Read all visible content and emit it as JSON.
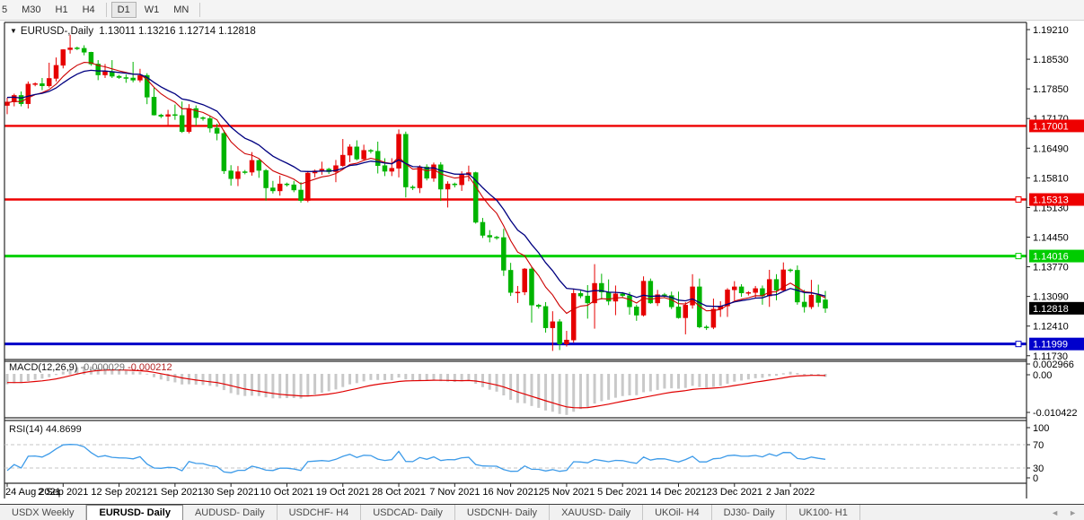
{
  "toolbar": {
    "timeframes": [
      "5",
      "M30",
      "H1",
      "H4",
      "D1",
      "W1",
      "MN"
    ],
    "active": "D1"
  },
  "title": {
    "dropdown_icon": "▼",
    "symbol": "EURUSD-,Daily",
    "open": "1.13011",
    "high": "1.13216",
    "low": "1.12714",
    "close": "1.12818"
  },
  "price_axis": {
    "ticks": [
      "1.19210",
      "1.18530",
      "1.17850",
      "1.17170",
      "1.16490",
      "1.15810",
      "1.15130",
      "1.14450",
      "1.13770",
      "1.13090",
      "1.12410",
      "1.11730"
    ],
    "tags": [
      {
        "text": "1.17001",
        "price": 1.17001,
        "bg": "#ee0000",
        "fg": "#ffffff"
      },
      {
        "text": "1.15313",
        "price": 1.15313,
        "bg": "#ee0000",
        "fg": "#ffffff"
      },
      {
        "text": "1.14016",
        "price": 1.14016,
        "bg": "#00cc00",
        "fg": "#ffffff"
      },
      {
        "text": "1.12818",
        "price": 1.12818,
        "bg": "#000000",
        "fg": "#ffffff"
      },
      {
        "text": "1.11999",
        "price": 1.11999,
        "bg": "#0000cc",
        "fg": "#ffffff"
      }
    ]
  },
  "indicators": {
    "macd": {
      "label": "MACD(12,26,9)",
      "value_main": "-0.000029",
      "value_signal": "-0.000212",
      "axis_labels": [
        "0.002966",
        "0.00",
        "-0.010422"
      ],
      "params": {
        "fast": 12,
        "slow": 26,
        "signal": 9
      },
      "hist_color": "#c9c9c9",
      "signal_color": "#e00000"
    },
    "rsi": {
      "label": "RSI(14)",
      "value": "44.8699",
      "period": 14,
      "axis_labels": [
        "100",
        "70",
        "30",
        "0"
      ],
      "levels": [
        70,
        30
      ],
      "line_color": "#3d9be9"
    }
  },
  "chart_data": {
    "type": "candlestick",
    "symbol": "EURUSD-",
    "timeframe": "Daily",
    "ylim": [
      1.11643,
      1.19374
    ],
    "bull_color": "#e60000",
    "bear_color": "#00b400",
    "ma_fast": {
      "period": 8,
      "color": "#cc0000"
    },
    "ma_slow": {
      "period": 14,
      "color": "#000080"
    },
    "macd_ylim": [
      -0.010422,
      0.002966
    ],
    "x_label_interval": 8,
    "x_labels": [
      "24 Aug 2021",
      "2 Sep 2021",
      "12 Sep 2021",
      "21 Sep 2021",
      "30 Sep 2021",
      "10 Oct 2021",
      "19 Oct 2021",
      "28 Oct 2021",
      "7 Nov 2021",
      "16 Nov 2021",
      "25 Nov 2021",
      "5 Dec 2021",
      "14 Dec 2021",
      "23 Dec 2021",
      "2 Jan 2022"
    ],
    "levels": [
      {
        "price": 1.17001,
        "color": "#ee0000",
        "width": 2.4,
        "handle": false
      },
      {
        "price": 1.15313,
        "color": "#ee0000",
        "width": 2.4,
        "handle": true
      },
      {
        "price": 1.14016,
        "color": "#00d000",
        "width": 3,
        "handle": true
      },
      {
        "price": 1.11999,
        "color": "#0000c8",
        "width": 3,
        "handle": true
      }
    ],
    "last_price": 1.12818,
    "warmup_closes": [
      1.184,
      1.1838,
      1.1832,
      1.1825,
      1.182,
      1.1815,
      1.1812,
      1.1806,
      1.18,
      1.1795,
      1.179,
      1.1785,
      1.1778,
      1.177,
      1.176,
      1.174,
      1.1726,
      1.173,
      1.1742,
      1.175
    ],
    "candles": [
      [
        1.1747,
        1.1765,
        1.1727,
        1.1755
      ],
      [
        1.1755,
        1.1774,
        1.1745,
        1.177
      ],
      [
        1.177,
        1.1779,
        1.1745,
        1.1751
      ],
      [
        1.1751,
        1.1802,
        1.174,
        1.1796
      ],
      [
        1.1796,
        1.18,
        1.1791,
        1.1797
      ],
      [
        1.1797,
        1.181,
        1.1782,
        1.1792
      ],
      [
        1.1792,
        1.1845,
        1.1788,
        1.1809
      ],
      [
        1.1809,
        1.1857,
        1.1802,
        1.1839
      ],
      [
        1.1839,
        1.1876,
        1.1832,
        1.1875
      ],
      [
        1.1875,
        1.1909,
        1.1866,
        1.1879
      ],
      [
        1.1879,
        1.1882,
        1.1874,
        1.1878
      ],
      [
        1.1878,
        1.1885,
        1.1862,
        1.1869
      ],
      [
        1.1869,
        1.187,
        1.1838,
        1.1842
      ],
      [
        1.1842,
        1.1851,
        1.1805,
        1.1817
      ],
      [
        1.1817,
        1.1842,
        1.181,
        1.1825
      ],
      [
        1.1825,
        1.1851,
        1.181,
        1.1814
      ],
      [
        1.1814,
        1.1817,
        1.1808,
        1.1811
      ],
      [
        1.1811,
        1.1818,
        1.1799,
        1.181
      ],
      [
        1.181,
        1.1847,
        1.18,
        1.1805
      ],
      [
        1.1805,
        1.1831,
        1.18,
        1.1816
      ],
      [
        1.1816,
        1.1821,
        1.175,
        1.1766
      ],
      [
        1.1766,
        1.1788,
        1.1724,
        1.1725
      ],
      [
        1.1725,
        1.1728,
        1.1718,
        1.1722
      ],
      [
        1.1722,
        1.1737,
        1.17,
        1.1726
      ],
      [
        1.1726,
        1.1749,
        1.1714,
        1.1724
      ],
      [
        1.1724,
        1.1756,
        1.1684,
        1.1687
      ],
      [
        1.1687,
        1.175,
        1.1683,
        1.174
      ],
      [
        1.174,
        1.1747,
        1.1701,
        1.1719
      ],
      [
        1.1719,
        1.1722,
        1.1712,
        1.1717
      ],
      [
        1.1717,
        1.1723,
        1.1685,
        1.1695
      ],
      [
        1.1695,
        1.1705,
        1.1667,
        1.1683
      ],
      [
        1.1683,
        1.169,
        1.159,
        1.1597
      ],
      [
        1.1597,
        1.161,
        1.1563,
        1.1579
      ],
      [
        1.1579,
        1.1608,
        1.1562,
        1.1595
      ],
      [
        1.1595,
        1.1599,
        1.1589,
        1.1594
      ],
      [
        1.1594,
        1.164,
        1.1586,
        1.1621
      ],
      [
        1.1621,
        1.1623,
        1.1581,
        1.1598
      ],
      [
        1.1598,
        1.1601,
        1.1529,
        1.1558
      ],
      [
        1.1558,
        1.1574,
        1.1545,
        1.1551
      ],
      [
        1.1551,
        1.1586,
        1.154,
        1.1567
      ],
      [
        1.1567,
        1.157,
        1.1561,
        1.1565
      ],
      [
        1.1565,
        1.1574,
        1.1548,
        1.1553
      ],
      [
        1.1553,
        1.1571,
        1.1524,
        1.1529
      ],
      [
        1.1529,
        1.1597,
        1.1525,
        1.1592
      ],
      [
        1.1592,
        1.16,
        1.1582,
        1.1597
      ],
      [
        1.1597,
        1.1618,
        1.1588,
        1.1601
      ],
      [
        1.1601,
        1.1604,
        1.159,
        1.1595
      ],
      [
        1.1595,
        1.1622,
        1.1571,
        1.1609
      ],
      [
        1.1609,
        1.167,
        1.1606,
        1.1633
      ],
      [
        1.1633,
        1.1658,
        1.1617,
        1.1652
      ],
      [
        1.1652,
        1.1667,
        1.1621,
        1.1624
      ],
      [
        1.1624,
        1.1657,
        1.162,
        1.1644
      ],
      [
        1.1644,
        1.1647,
        1.1637,
        1.1642
      ],
      [
        1.1642,
        1.1664,
        1.1591,
        1.1609
      ],
      [
        1.1609,
        1.1626,
        1.1585,
        1.1596
      ],
      [
        1.1596,
        1.1626,
        1.1585,
        1.1603
      ],
      [
        1.1603,
        1.1692,
        1.1582,
        1.1681
      ],
      [
        1.1681,
        1.1687,
        1.1536,
        1.156
      ],
      [
        1.156,
        1.1564,
        1.1553,
        1.1558
      ],
      [
        1.1558,
        1.161,
        1.1546,
        1.1606
      ],
      [
        1.1606,
        1.1612,
        1.1575,
        1.158
      ],
      [
        1.158,
        1.1616,
        1.1572,
        1.1611
      ],
      [
        1.1611,
        1.1617,
        1.1528,
        1.1555
      ],
      [
        1.1555,
        1.1573,
        1.1513,
        1.1567
      ],
      [
        1.1567,
        1.157,
        1.1559,
        1.1565
      ],
      [
        1.1565,
        1.1596,
        1.1551,
        1.1588
      ],
      [
        1.1588,
        1.1609,
        1.1573,
        1.1593
      ],
      [
        1.1593,
        1.1595,
        1.1476,
        1.1479
      ],
      [
        1.1479,
        1.1489,
        1.1443,
        1.1449
      ],
      [
        1.1449,
        1.1461,
        1.1433,
        1.1445
      ],
      [
        1.1445,
        1.1448,
        1.1439,
        1.1444
      ],
      [
        1.1444,
        1.1464,
        1.1356,
        1.1369
      ],
      [
        1.1369,
        1.1386,
        1.131,
        1.1318
      ],
      [
        1.1318,
        1.1333,
        1.1294,
        1.1319
      ],
      [
        1.1319,
        1.1374,
        1.1312,
        1.1372
      ],
      [
        1.1372,
        1.1377,
        1.1249,
        1.1289
      ],
      [
        1.1289,
        1.1292,
        1.1281,
        1.1286
      ],
      [
        1.1286,
        1.1296,
        1.1226,
        1.1237
      ],
      [
        1.1237,
        1.1275,
        1.1184,
        1.1251
      ],
      [
        1.1251,
        1.1257,
        1.1186,
        1.12
      ],
      [
        1.12,
        1.123,
        1.1194,
        1.1209
      ],
      [
        1.1209,
        1.1327,
        1.1203,
        1.1316
      ],
      [
        1.1316,
        1.1322,
        1.1305,
        1.131
      ],
      [
        1.131,
        1.1335,
        1.1258,
        1.1294
      ],
      [
        1.1294,
        1.1383,
        1.1235,
        1.1339
      ],
      [
        1.1339,
        1.1361,
        1.1302,
        1.1319
      ],
      [
        1.1319,
        1.1348,
        1.1289,
        1.1298
      ],
      [
        1.1298,
        1.1334,
        1.1266,
        1.1315
      ],
      [
        1.1315,
        1.1319,
        1.1305,
        1.1311
      ],
      [
        1.1311,
        1.1319,
        1.1267,
        1.1285
      ],
      [
        1.1285,
        1.129,
        1.1253,
        1.1266
      ],
      [
        1.1266,
        1.1355,
        1.1263,
        1.1344
      ],
      [
        1.1344,
        1.135,
        1.1292,
        1.1294
      ],
      [
        1.1294,
        1.1324,
        1.1287,
        1.1313
      ],
      [
        1.1313,
        1.1317,
        1.1307,
        1.1311
      ],
      [
        1.1311,
        1.132,
        1.128,
        1.1285
      ],
      [
        1.1285,
        1.132,
        1.1258,
        1.126
      ],
      [
        1.126,
        1.1296,
        1.1222,
        1.1289
      ],
      [
        1.1289,
        1.136,
        1.1281,
        1.1331
      ],
      [
        1.1331,
        1.135,
        1.1236,
        1.1239
      ],
      [
        1.1239,
        1.1243,
        1.1232,
        1.1238
      ],
      [
        1.1238,
        1.1304,
        1.1234,
        1.128
      ],
      [
        1.128,
        1.1298,
        1.1262,
        1.1287
      ],
      [
        1.1287,
        1.1328,
        1.1262,
        1.1324
      ],
      [
        1.1324,
        1.1344,
        1.13,
        1.1331
      ],
      [
        1.1331,
        1.1337,
        1.1308,
        1.1317
      ],
      [
        1.1317,
        1.1321,
        1.1311,
        1.1318
      ],
      [
        1.1318,
        1.1333,
        1.1304,
        1.1327
      ],
      [
        1.1327,
        1.1334,
        1.129,
        1.131
      ],
      [
        1.131,
        1.137,
        1.1285,
        1.1348
      ],
      [
        1.1348,
        1.136,
        1.13,
        1.1323
      ],
      [
        1.1323,
        1.1387,
        1.132,
        1.137
      ],
      [
        1.137,
        1.1373,
        1.1364,
        1.1369
      ],
      [
        1.1369,
        1.138,
        1.129,
        1.1296
      ],
      [
        1.1296,
        1.1324,
        1.1272,
        1.1285
      ],
      [
        1.1285,
        1.1347,
        1.128,
        1.1312
      ],
      [
        1.1312,
        1.1336,
        1.1285,
        1.1295
      ],
      [
        1.13011,
        1.13216,
        1.12714,
        1.12818
      ]
    ]
  },
  "tabs": {
    "items": [
      "USDX Weekly",
      "EURUSD- Daily",
      "AUDUSD- Daily",
      "USDCHF- H4",
      "USDCAD- Daily",
      "USDCNH- Daily",
      "XAUUSD- Daily",
      "UKOil- H4",
      "DJ30- Daily",
      "UK100- H1"
    ],
    "active_index": 1,
    "scroll_left_icon": "◄",
    "scroll_right_icon": "►"
  }
}
